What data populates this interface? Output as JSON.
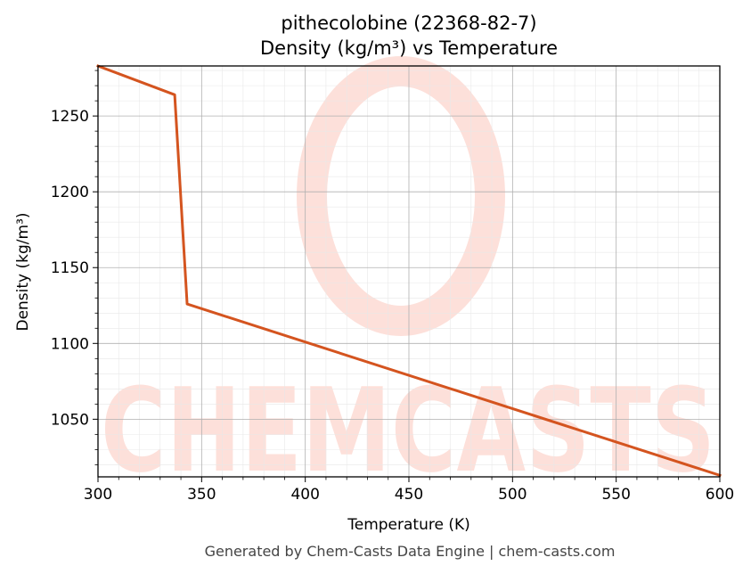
{
  "chart_data": {
    "type": "line",
    "title": "pithecolobine (22368-82-7)",
    "subtitle": "Density (kg/m³) vs Temperature",
    "xlabel": "Temperature (K)",
    "ylabel": "Density (kg/m³)",
    "xlim": [
      300,
      600
    ],
    "ylim": [
      1012,
      1283
    ],
    "xticks": [
      300,
      350,
      400,
      450,
      500,
      550,
      600
    ],
    "yticks": [
      1050,
      1100,
      1150,
      1200,
      1250
    ],
    "grid": true,
    "series": [
      {
        "color": "#d4541f",
        "x": [
          300,
          337,
          343,
          600
        ],
        "y": [
          1283,
          1264,
          1126,
          1013
        ]
      }
    ]
  },
  "watermark": {
    "text": "CHEMCASTS",
    "color": "#fde0da"
  },
  "footer": "Generated by Chem-Casts Data Engine | chem-casts.com"
}
